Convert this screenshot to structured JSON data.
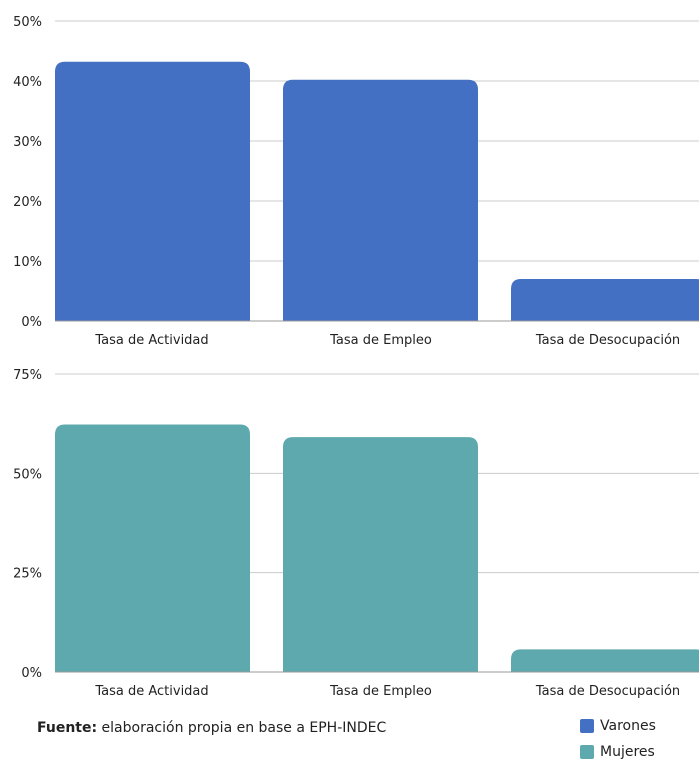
{
  "chart_data": [
    {
      "type": "bar",
      "categories": [
        "Tasa de Actividad",
        "Tasa de Empleo",
        "Tasa de Desocupación"
      ],
      "series": [
        {
          "name": "Varones",
          "values": [
            43.2,
            40.2,
            7.0
          ]
        }
      ],
      "ylim": [
        0,
        50
      ],
      "yticks": [
        "0%",
        "10%",
        "20%",
        "30%",
        "40%",
        "50%"
      ],
      "ytick_values": [
        0,
        10,
        20,
        30,
        40,
        50
      ],
      "grid": true
    },
    {
      "type": "bar",
      "categories": [
        "Tasa de Actividad",
        "Tasa de Empleo",
        "Tasa de Desocupación"
      ],
      "series": [
        {
          "name": "Mujeres",
          "values": [
            62.3,
            59.1,
            5.7
          ]
        }
      ],
      "ylim": [
        0,
        75
      ],
      "yticks": [
        "0%",
        "25%",
        "50%",
        "75%"
      ],
      "ytick_values": [
        0,
        25,
        50,
        75
      ],
      "grid": true
    }
  ],
  "source": {
    "label": "Fuente:",
    "text": " elaboración propia en base a EPH-INDEC"
  },
  "legend": {
    "placement": "bottom-right",
    "items": [
      {
        "label": "Varones",
        "color": "#4470C4"
      },
      {
        "label": "Mujeres",
        "color": "#5DA9AE"
      }
    ]
  }
}
